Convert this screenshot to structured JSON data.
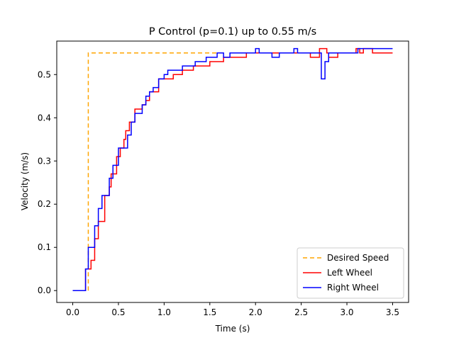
{
  "chart_data": {
    "type": "line",
    "title": "P Control (p=0.1) up to 0.55 m/s",
    "xlabel": "Time (s)",
    "ylabel": "Velocity (m/s)",
    "xlim": [
      -0.175,
      3.675
    ],
    "ylim": [
      -0.0275,
      0.5775
    ],
    "xticks": [
      0.0,
      0.5,
      1.0,
      1.5,
      2.0,
      2.5,
      3.0,
      3.5
    ],
    "xtick_labels": [
      "0.0",
      "0.5",
      "1.0",
      "1.5",
      "2.0",
      "2.5",
      "3.0",
      "3.5"
    ],
    "yticks": [
      0.0,
      0.1,
      0.2,
      0.3,
      0.4,
      0.5
    ],
    "ytick_labels": [
      "0.0",
      "0.1",
      "0.2",
      "0.3",
      "0.4",
      "0.5"
    ],
    "grid": false,
    "legend_position": "bottom-right",
    "series": [
      {
        "name": "Desired Speed",
        "color": "#ffa500",
        "dash": "6,4",
        "step": true,
        "points": [
          [
            0.17,
            0.0
          ],
          [
            0.17,
            0.55
          ],
          [
            1.55,
            0.55
          ],
          [
            1.6,
            0.55
          ]
        ]
      },
      {
        "name": "Left Wheel",
        "color": "#ff0000",
        "dash": "",
        "step": true,
        "points": [
          [
            0.0,
            0.0
          ],
          [
            0.14,
            0.0
          ],
          [
            0.14,
            0.05
          ],
          [
            0.2,
            0.05
          ],
          [
            0.2,
            0.07
          ],
          [
            0.24,
            0.07
          ],
          [
            0.24,
            0.12
          ],
          [
            0.28,
            0.12
          ],
          [
            0.28,
            0.16
          ],
          [
            0.35,
            0.16
          ],
          [
            0.35,
            0.22
          ],
          [
            0.4,
            0.22
          ],
          [
            0.4,
            0.24
          ],
          [
            0.42,
            0.24
          ],
          [
            0.42,
            0.27
          ],
          [
            0.48,
            0.27
          ],
          [
            0.48,
            0.31
          ],
          [
            0.52,
            0.31
          ],
          [
            0.52,
            0.33
          ],
          [
            0.56,
            0.33
          ],
          [
            0.56,
            0.35
          ],
          [
            0.58,
            0.35
          ],
          [
            0.58,
            0.37
          ],
          [
            0.62,
            0.37
          ],
          [
            0.62,
            0.39
          ],
          [
            0.68,
            0.39
          ],
          [
            0.68,
            0.42
          ],
          [
            0.76,
            0.42
          ],
          [
            0.76,
            0.43
          ],
          [
            0.8,
            0.43
          ],
          [
            0.8,
            0.44
          ],
          [
            0.84,
            0.44
          ],
          [
            0.84,
            0.46
          ],
          [
            0.94,
            0.46
          ],
          [
            0.94,
            0.49
          ],
          [
            1.1,
            0.49
          ],
          [
            1.1,
            0.5
          ],
          [
            1.2,
            0.5
          ],
          [
            1.2,
            0.51
          ],
          [
            1.32,
            0.51
          ],
          [
            1.32,
            0.52
          ],
          [
            1.5,
            0.52
          ],
          [
            1.5,
            0.53
          ],
          [
            1.65,
            0.53
          ],
          [
            1.65,
            0.54
          ],
          [
            1.9,
            0.54
          ],
          [
            1.9,
            0.55
          ],
          [
            2.6,
            0.55
          ],
          [
            2.6,
            0.54
          ],
          [
            2.7,
            0.54
          ],
          [
            2.7,
            0.56
          ],
          [
            2.78,
            0.56
          ],
          [
            2.78,
            0.55
          ],
          [
            2.8,
            0.55
          ],
          [
            2.8,
            0.54
          ],
          [
            2.9,
            0.54
          ],
          [
            2.9,
            0.55
          ],
          [
            3.1,
            0.55
          ],
          [
            3.1,
            0.56
          ],
          [
            3.14,
            0.56
          ],
          [
            3.14,
            0.55
          ],
          [
            3.18,
            0.55
          ],
          [
            3.18,
            0.56
          ],
          [
            3.28,
            0.56
          ],
          [
            3.28,
            0.55
          ],
          [
            3.5,
            0.55
          ]
        ]
      },
      {
        "name": "Right Wheel",
        "color": "#0000ff",
        "dash": "",
        "step": true,
        "points": [
          [
            0.0,
            0.0
          ],
          [
            0.14,
            0.0
          ],
          [
            0.14,
            0.05
          ],
          [
            0.17,
            0.05
          ],
          [
            0.17,
            0.1
          ],
          [
            0.24,
            0.1
          ],
          [
            0.24,
            0.15
          ],
          [
            0.28,
            0.15
          ],
          [
            0.28,
            0.19
          ],
          [
            0.32,
            0.19
          ],
          [
            0.32,
            0.22
          ],
          [
            0.4,
            0.22
          ],
          [
            0.4,
            0.26
          ],
          [
            0.44,
            0.26
          ],
          [
            0.44,
            0.29
          ],
          [
            0.5,
            0.29
          ],
          [
            0.5,
            0.33
          ],
          [
            0.6,
            0.33
          ],
          [
            0.6,
            0.36
          ],
          [
            0.64,
            0.36
          ],
          [
            0.64,
            0.39
          ],
          [
            0.68,
            0.39
          ],
          [
            0.68,
            0.41
          ],
          [
            0.76,
            0.41
          ],
          [
            0.76,
            0.43
          ],
          [
            0.8,
            0.43
          ],
          [
            0.8,
            0.45
          ],
          [
            0.84,
            0.45
          ],
          [
            0.84,
            0.46
          ],
          [
            0.88,
            0.46
          ],
          [
            0.88,
            0.47
          ],
          [
            0.94,
            0.47
          ],
          [
            0.94,
            0.49
          ],
          [
            1.0,
            0.49
          ],
          [
            1.0,
            0.5
          ],
          [
            1.04,
            0.5
          ],
          [
            1.04,
            0.51
          ],
          [
            1.2,
            0.51
          ],
          [
            1.2,
            0.52
          ],
          [
            1.34,
            0.52
          ],
          [
            1.34,
            0.53
          ],
          [
            1.46,
            0.53
          ],
          [
            1.46,
            0.54
          ],
          [
            1.58,
            0.54
          ],
          [
            1.58,
            0.55
          ],
          [
            1.65,
            0.55
          ],
          [
            1.65,
            0.54
          ],
          [
            1.72,
            0.54
          ],
          [
            1.72,
            0.55
          ],
          [
            2.0,
            0.55
          ],
          [
            2.0,
            0.56
          ],
          [
            2.04,
            0.56
          ],
          [
            2.04,
            0.55
          ],
          [
            2.18,
            0.55
          ],
          [
            2.18,
            0.54
          ],
          [
            2.26,
            0.54
          ],
          [
            2.26,
            0.55
          ],
          [
            2.42,
            0.55
          ],
          [
            2.42,
            0.56
          ],
          [
            2.46,
            0.56
          ],
          [
            2.46,
            0.55
          ],
          [
            2.72,
            0.55
          ],
          [
            2.72,
            0.49
          ],
          [
            2.76,
            0.49
          ],
          [
            2.76,
            0.53
          ],
          [
            2.8,
            0.53
          ],
          [
            2.8,
            0.55
          ],
          [
            3.12,
            0.55
          ],
          [
            3.12,
            0.56
          ],
          [
            3.5,
            0.56
          ]
        ]
      }
    ]
  }
}
